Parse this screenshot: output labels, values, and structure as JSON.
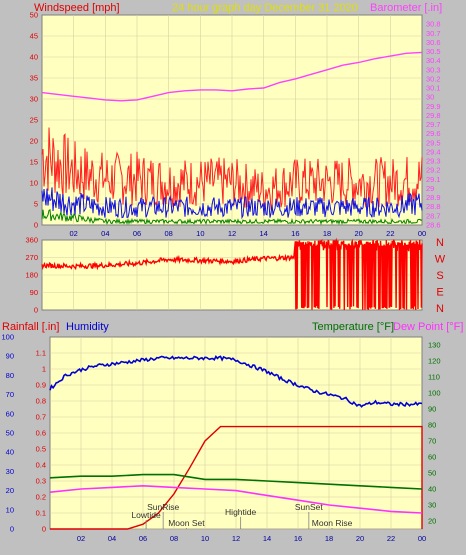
{
  "header": {
    "wind_label": "Windspeed [mph]",
    "date_label": "24 hour graph day   December 31 2020",
    "baro_label": "Barometer [.in]",
    "rain_label": "Rainfall [.in]",
    "hum_label": "Humidity",
    "temp_label": "Temperature [°F]",
    "dew_label": "Dew Point [°F]"
  },
  "colors": {
    "background": "#c0c0c0",
    "plot_bg": "#ffffc0",
    "grid": "#d9d0a0",
    "wind_gust": "#ff2020",
    "wind_avg": "#1010e0",
    "wind_low": "#008000",
    "barometer": "#ff40ff",
    "direction": "#ff0000",
    "rainfall": "#e00000",
    "humidity": "#0000d0",
    "temperature": "#007000",
    "dewpoint": "#ff30ff"
  },
  "chart_data": [
    {
      "type": "line",
      "x_ticks": [
        "02",
        "04",
        "06",
        "08",
        "10",
        "12",
        "14",
        "16",
        "18",
        "20",
        "22",
        "00"
      ],
      "left_axis": {
        "label": "Windspeed [mph]",
        "ylim": [
          0,
          50
        ],
        "ticks": [
          "0",
          "5",
          "10",
          "15",
          "20",
          "25",
          "30",
          "35",
          "40",
          "45",
          "50"
        ]
      },
      "right_axis": {
        "label": "Barometer [.in]",
        "ylim": [
          28.6,
          30.9
        ],
        "ticks": [
          "28.6",
          "28.7",
          "28.8",
          "28.9",
          "29",
          "29.1",
          "29.2",
          "29.3",
          "29.4",
          "29.5",
          "29.6",
          "29.7",
          "29.8",
          "29.9",
          "30",
          "30.1",
          "30.2",
          "30.3",
          "30.4",
          "30.5",
          "30.6",
          "30.7",
          "30.8"
        ]
      },
      "series": [
        {
          "name": "Barometer [.in]",
          "axis": "right",
          "x": [
            0,
            1,
            2,
            3,
            4,
            5,
            6,
            7,
            8,
            9,
            10,
            11,
            12,
            13,
            14,
            15,
            16,
            17,
            18,
            19,
            20,
            21,
            22,
            23,
            24
          ],
          "values": [
            30.05,
            30.03,
            30.01,
            29.99,
            29.97,
            29.96,
            29.97,
            30.01,
            30.05,
            30.07,
            30.08,
            30.08,
            30.07,
            30.09,
            30.1,
            30.16,
            30.2,
            30.25,
            30.3,
            30.35,
            30.38,
            30.42,
            30.45,
            30.48,
            30.49
          ]
        },
        {
          "kind": "wind_gust",
          "axis": "left",
          "x": [
            0,
            2,
            4,
            6,
            8,
            10,
            12,
            14,
            16,
            18,
            20,
            22,
            24
          ],
          "values": [
            20,
            15,
            13,
            13,
            12,
            12,
            12,
            10,
            12,
            12,
            12,
            12,
            13
          ]
        },
        {
          "kind": "wind_avg",
          "axis": "left",
          "x": [
            0,
            2,
            4,
            6,
            8,
            10,
            12,
            14,
            16,
            18,
            20,
            22,
            24
          ],
          "values": [
            8,
            6,
            5,
            5,
            5,
            5,
            5,
            5,
            5,
            5,
            5,
            5,
            6
          ]
        },
        {
          "kind": "wind_low",
          "axis": "left",
          "x": [
            0,
            2,
            4,
            6,
            8,
            10,
            12,
            14,
            16,
            18,
            20,
            22,
            24
          ],
          "values": [
            3,
            2,
            1,
            1,
            1,
            1,
            1,
            1,
            1,
            1,
            1,
            1,
            1
          ]
        }
      ]
    },
    {
      "type": "line",
      "y_ticks": [
        "0",
        "90",
        "180",
        "270",
        "360"
      ],
      "ylim": [
        0,
        360
      ],
      "compass": [
        "N",
        "W",
        "S",
        "E",
        "N"
      ],
      "series": [
        {
          "kind": "wind_direction",
          "x": [
            0,
            2,
            4,
            6,
            8,
            10,
            12,
            14,
            15.9
          ],
          "values": [
            230,
            225,
            230,
            240,
            260,
            255,
            250,
            265,
            270
          ],
          "scatter_from": 16,
          "scatter_to": 24,
          "scatter_range": [
            0,
            360
          ]
        }
      ]
    },
    {
      "type": "line",
      "x_ticks": [
        "02",
        "04",
        "06",
        "08",
        "10",
        "12",
        "14",
        "16",
        "18",
        "20",
        "22",
        "00"
      ],
      "axis_rain_ticks": [
        "0",
        "0.1",
        "0.2",
        "0.3",
        "0.4",
        "0.5",
        "0.6",
        "0.7",
        "0.8",
        "0.9",
        "1",
        "1.1"
      ],
      "rain_ylim": [
        0,
        1.2
      ],
      "axis_hum_ticks": [
        "0",
        "10",
        "20",
        "30",
        "40",
        "50",
        "60",
        "70",
        "80",
        "90",
        "100"
      ],
      "hum_ylim": [
        0,
        100
      ],
      "axis_temp_ticks": [
        "20",
        "30",
        "40",
        "50",
        "60",
        "70",
        "80",
        "90",
        "100",
        "110",
        "120",
        "130"
      ],
      "temp_ylim": [
        15,
        135
      ],
      "series": [
        {
          "name": "Humidity",
          "axis": "humidity",
          "x": [
            0,
            1,
            2,
            3,
            4,
            5,
            6,
            7,
            8,
            9,
            10,
            11,
            12,
            13,
            14,
            15,
            16,
            17,
            18,
            19,
            20,
            21,
            22,
            23,
            24
          ],
          "values": [
            73,
            80,
            83,
            85,
            86,
            87,
            88,
            89,
            89,
            89,
            89,
            89,
            88,
            85,
            82,
            78,
            75,
            72,
            70,
            68,
            64,
            66,
            65,
            65,
            65
          ]
        },
        {
          "name": "Rainfall [.in]",
          "axis": "rain",
          "x": [
            0,
            5,
            6,
            7,
            8,
            9,
            10,
            11,
            24,
            24
          ],
          "values": [
            0,
            0,
            0.03,
            0.1,
            0.22,
            0.38,
            0.55,
            0.64,
            0.64,
            0
          ]
        },
        {
          "name": "Temperature [°F]",
          "axis": "temp",
          "x": [
            0,
            2,
            4,
            6,
            8,
            10,
            12,
            14,
            16,
            18,
            20,
            22,
            24
          ],
          "values": [
            47,
            48,
            48,
            49,
            49,
            46,
            46,
            45,
            44,
            43,
            42,
            41,
            40
          ]
        },
        {
          "name": "Dew Point [°F]",
          "axis": "temp",
          "x": [
            0,
            2,
            4,
            6,
            8,
            10,
            12,
            14,
            16,
            18,
            20,
            22,
            24
          ],
          "values": [
            38,
            40,
            41,
            42,
            41,
            40,
            39,
            36,
            33,
            30,
            28,
            26,
            25
          ]
        }
      ],
      "annotations": [
        {
          "label": "SunRise",
          "x": 7.3,
          "row": 0
        },
        {
          "label": "Lowtide",
          "x": 6.2,
          "row": 1
        },
        {
          "label": "Moon Set",
          "x": 8.8,
          "row": 2
        },
        {
          "label": "Hightide",
          "x": 12.3,
          "row": 0.6
        },
        {
          "label": "SunSet",
          "x": 16.7,
          "row": 0
        },
        {
          "label": "Moon Rise",
          "x": 18.2,
          "row": 2
        }
      ]
    }
  ]
}
